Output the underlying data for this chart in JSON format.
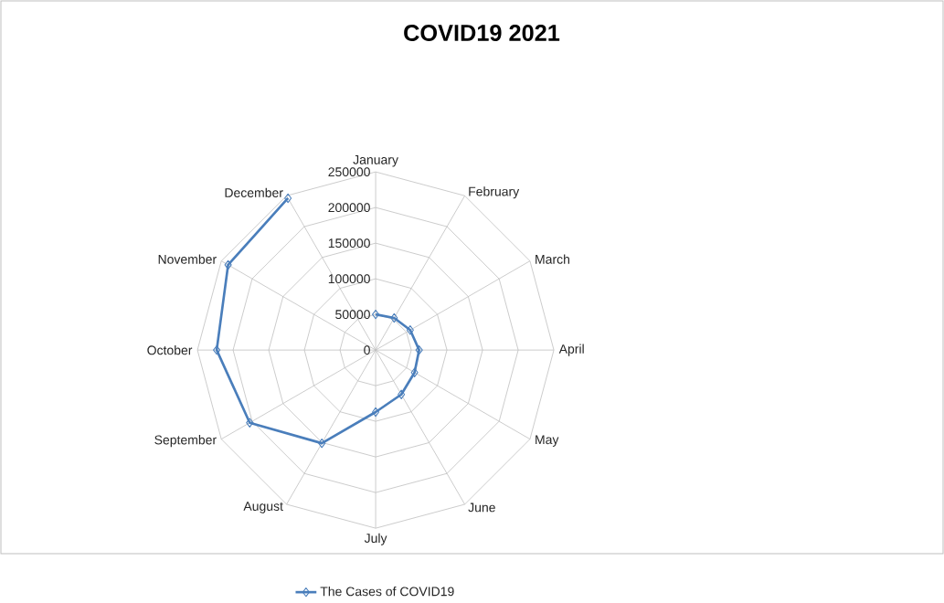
{
  "chart_data": {
    "type": "radar",
    "title": "COVID19 2021",
    "categories": [
      "January",
      "February",
      "March",
      "April",
      "May",
      "June",
      "July",
      "August",
      "September",
      "October",
      "November",
      "December"
    ],
    "series": [
      {
        "name": "The Cases of COVID19",
        "color": "#4a7ebb",
        "values": [
          50000,
          52000,
          56000,
          61000,
          63000,
          72000,
          87000,
          151000,
          204000,
          223000,
          239000,
          246000
        ]
      }
    ],
    "ylim": [
      0,
      250000
    ],
    "yticks": [
      0,
      50000,
      100000,
      150000,
      200000,
      250000
    ],
    "grid": true,
    "marker": "diamond",
    "legend": "bottom",
    "line_style": "solid"
  }
}
